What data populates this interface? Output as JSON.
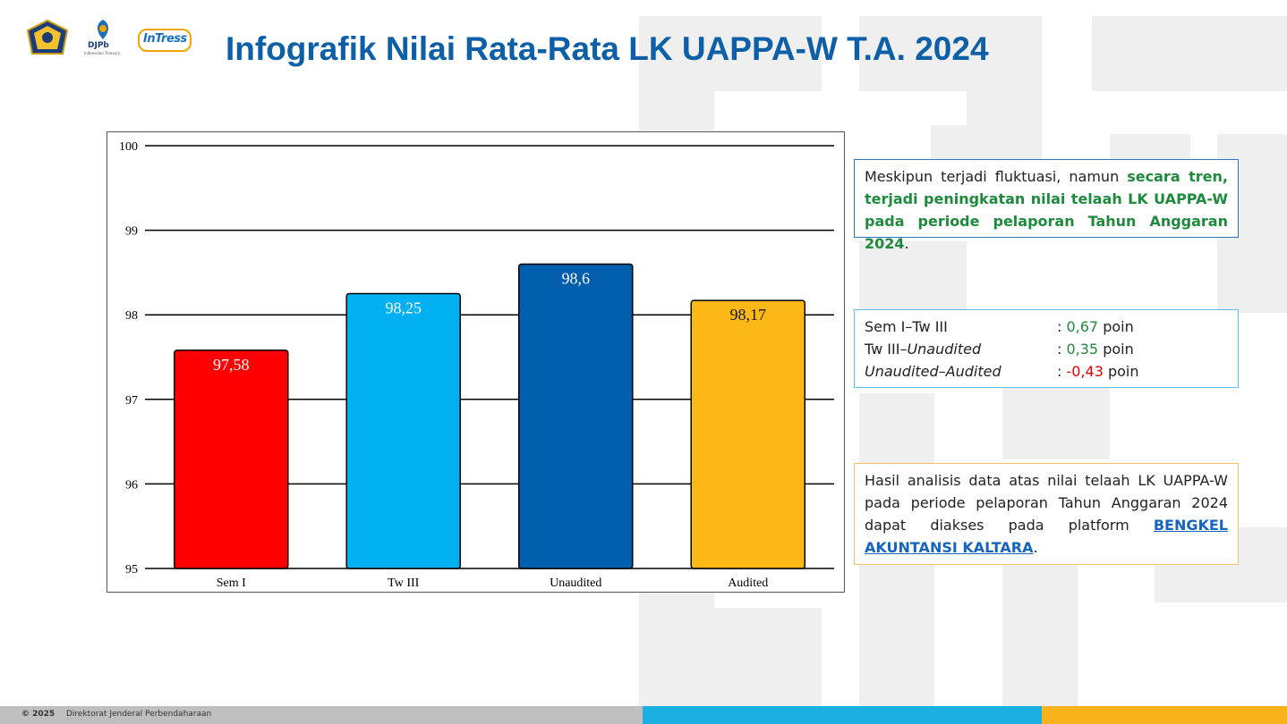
{
  "header": {
    "title": "Infografik Nilai Rata-Rata LK UAPPA-W T.A. 2024",
    "logos": {
      "djpb_text": "DJPb",
      "djpb_subtext": "Indonesian Treasury",
      "intress_text": "InTress"
    }
  },
  "chart_data": {
    "type": "bar",
    "categories": [
      "Sem I",
      "Tw III",
      "Unaudited",
      "Audited"
    ],
    "values": [
      97.58,
      98.25,
      98.6,
      98.17
    ],
    "data_labels": [
      "97,58",
      "98,25",
      "98,6",
      "98,17"
    ],
    "bar_colors": [
      "#ff0000",
      "#00b0f0",
      "#005eac",
      "#fbb817"
    ],
    "ylim": [
      95,
      100
    ],
    "yticks": [
      100,
      99,
      98,
      97,
      96,
      95
    ],
    "grid": true,
    "title": "",
    "xlabel": "",
    "ylabel": ""
  },
  "trend_box": {
    "text_plain": "Meskipun terjadi fluktuasi, namun ",
    "text_highlight": "secara tren, terjadi peningkatan nilai telaah LK UAPPA-W pada periode pelaporan Tahun Anggaran 2024",
    "text_end": "."
  },
  "diff_box": {
    "rows": [
      {
        "label": "Sem I–Tw III",
        "sep": ": ",
        "value": "0,67",
        "unit": " poin",
        "sign": "positive"
      },
      {
        "label_plain": "Tw III–",
        "label_italic": "Unaudited",
        "sep": ": ",
        "value": "0,35",
        "unit": " poin",
        "sign": "positive"
      },
      {
        "label_italic": "Unaudited–Audited",
        "sep": ": ",
        "value": "-0,43",
        "unit": " poin",
        "sign": "negative"
      }
    ]
  },
  "info_box": {
    "text": "Hasil analisis data atas nilai telaah LK UAPPA-W pada periode pelaporan Tahun Anggaran 2024 dapat diakses pada platform ",
    "link_text": "BENGKEL AKUNTANSI KALTARA",
    "text_end": "."
  },
  "footer": {
    "copyright": "© 2025",
    "organization": "Direktorat Jenderal Perbendaharaan"
  },
  "colors": {
    "title": "#0d5fa8",
    "positive": "#1e8a3c",
    "negative": "#e00000",
    "link": "#1565c0"
  }
}
